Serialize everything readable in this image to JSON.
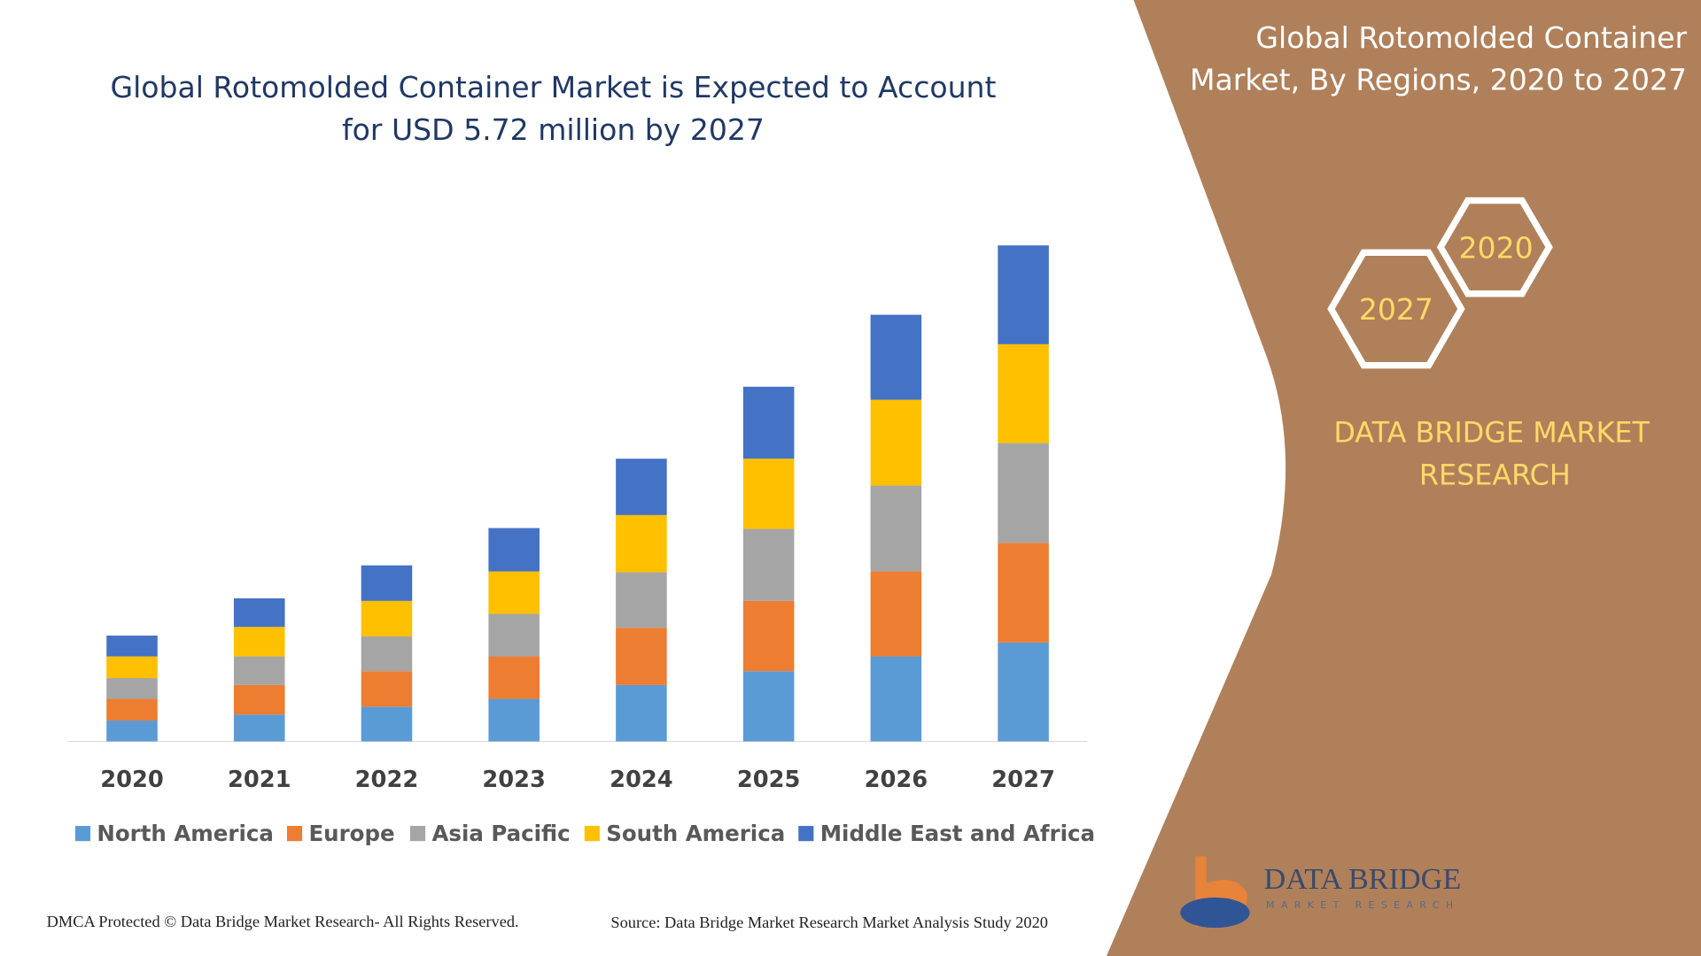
{
  "chart_data": {
    "type": "bar",
    "stacked": true,
    "title": [
      "Global Rotomolded Container Market is Expected to Account",
      "for USD 5.72 million by 2027"
    ],
    "categories": [
      "2020",
      "2021",
      "2022",
      "2023",
      "2024",
      "2025",
      "2026",
      "2027"
    ],
    "series": [
      {
        "name": "North America",
        "color": "#5b9bd5",
        "values": [
          0.24,
          0.31,
          0.4,
          0.49,
          0.65,
          0.81,
          0.98,
          1.14
        ]
      },
      {
        "name": "Europe",
        "color": "#ed7d31",
        "values": [
          0.25,
          0.34,
          0.41,
          0.49,
          0.66,
          0.81,
          0.98,
          1.15
        ]
      },
      {
        "name": "Asia Pacific",
        "color": "#a5a5a5",
        "values": [
          0.24,
          0.33,
          0.4,
          0.49,
          0.64,
          0.83,
          0.99,
          1.15
        ]
      },
      {
        "name": "South America",
        "color": "#ffc000",
        "values": [
          0.25,
          0.34,
          0.41,
          0.49,
          0.66,
          0.81,
          0.99,
          1.14
        ]
      },
      {
        "name": "Middle East and Africa",
        "color": "#4472c4",
        "values": [
          0.24,
          0.33,
          0.41,
          0.5,
          0.65,
          0.83,
          0.98,
          1.14
        ]
      }
    ],
    "ylim": [
      0,
      6
    ],
    "legend": "bottom"
  },
  "panel": {
    "title": [
      "Global Rotomolded Container",
      "Market, By Regions, 2020 to 2027"
    ],
    "hex_labels": [
      "2020",
      "2027"
    ],
    "brand": [
      "DATA BRIDGE MARKET",
      "RESEARCH"
    ]
  },
  "logo": {
    "name": "DATA BRIDGE",
    "tagline": "MARKET RESEARCH"
  },
  "footer": {
    "copyright": "DMCA Protected © Data Bridge Market Research- All Rights Reserved.",
    "source": "Source: Data Bridge Market Research Market Analysis Study 2020"
  }
}
